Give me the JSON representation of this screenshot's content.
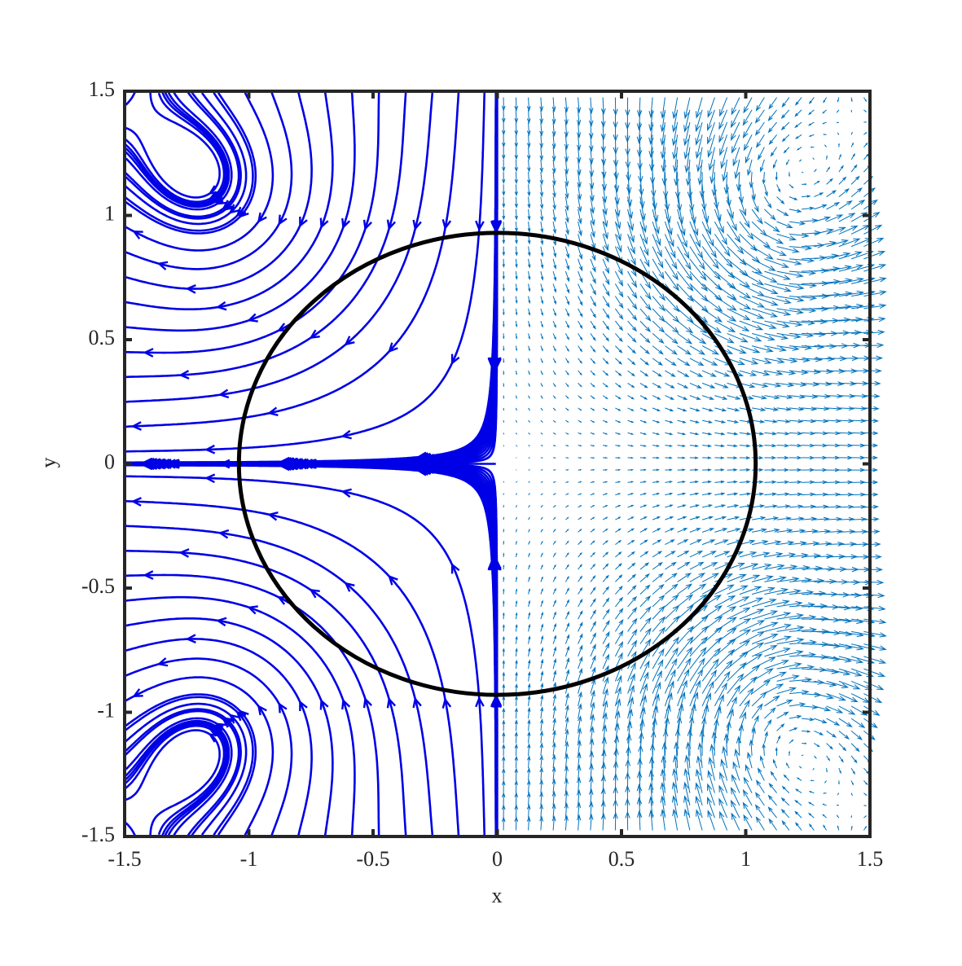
{
  "chart_data": {
    "type": "vector-field",
    "xlabel": "x",
    "ylabel": "y",
    "xlim": [
      -1.5,
      1.5
    ],
    "ylim": [
      -1.5,
      1.5
    ],
    "xticks": [
      -1.5,
      -1,
      -0.5,
      0,
      0.5,
      1,
      1.5
    ],
    "yticks": [
      -1.5,
      -1,
      -0.5,
      0,
      0.5,
      1,
      1.5
    ],
    "streamline_color": "#0000e6",
    "quiver_color": "#0072bd",
    "boundary_color": "#000000",
    "boundary": {
      "cx": 0,
      "cy": 0,
      "rx": 1.04,
      "ry": 0.93
    },
    "field": {
      "rate": 1,
      "vortices": [
        {
          "x": -1.1,
          "y": 1.05,
          "strength": 10,
          "radius": 0.5
        },
        {
          "x": -1.1,
          "y": -1.05,
          "strength": -10,
          "radius": 0.5
        },
        {
          "x": 1.1,
          "y": 1.05,
          "strength": -10,
          "radius": 0.5
        },
        {
          "x": 1.1,
          "y": -1.05,
          "strength": 10,
          "radius": 0.5
        }
      ]
    }
  }
}
